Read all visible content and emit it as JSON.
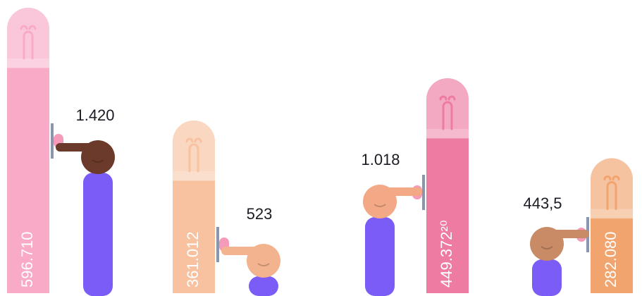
{
  "chart_data": {
    "type": "bulb-bar",
    "series": [
      {
        "values": [
          596710,
          361012,
          449372.2,
          282080
        ],
        "value_labels": [
          "596.710",
          "361.012",
          "449.372²⁰",
          "282.080"
        ],
        "colors": [
          "#f8aac6",
          "#f8c2a0",
          "#ee7ba2",
          "#f2a46e"
        ]
      },
      {
        "values": [
          1420,
          523,
          1018,
          443.5
        ],
        "value_labels": [
          "1.420",
          "523",
          "1.018",
          "443,5"
        ],
        "color": "#7b5cf6"
      }
    ]
  }
}
